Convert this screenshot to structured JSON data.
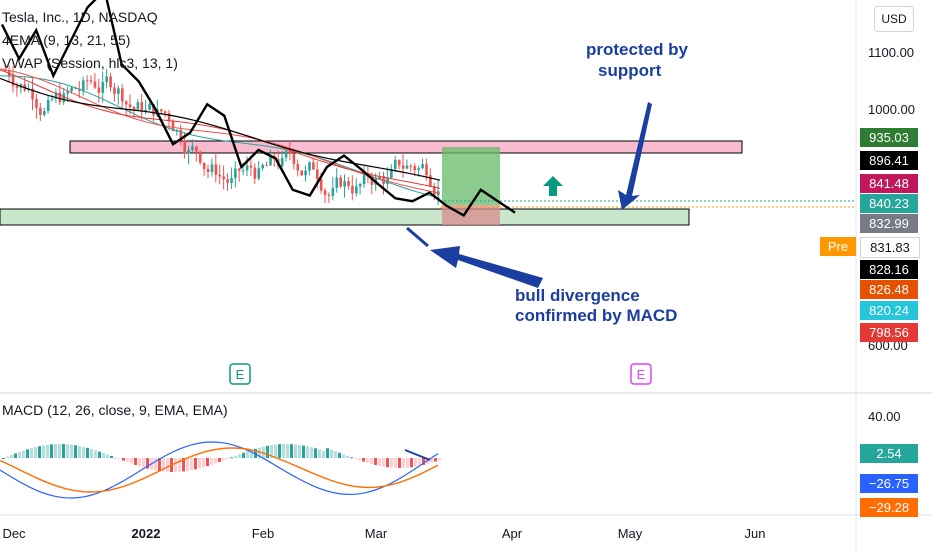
{
  "header": {
    "symbol_line": "Tesla, Inc., 1D, NASDAQ",
    "ema_line": "4EMA (9, 13, 21, 55)",
    "vwap_line": "VWAP (Session, hlc3, 13, 1)",
    "currency_button": "USD"
  },
  "annotations": {
    "support_line1": "protected by",
    "support_line2": "support",
    "divergence_line1": "bull divergence",
    "divergence_line2": "confirmed by MACD"
  },
  "earnings_markers": [
    {
      "label": "E",
      "color": "#089981"
    },
    {
      "label": "E",
      "color": "#e040fb"
    }
  ],
  "price_axis": {
    "ticks": [
      "1100.00",
      "1000.00",
      "600.00"
    ]
  },
  "price_tags": [
    {
      "value": "935.03",
      "bg": "#2e7d32"
    },
    {
      "value": "896.41",
      "bg": "#000000"
    },
    {
      "value": "841.48",
      "bg": "#c2185b"
    },
    {
      "value": "840.23",
      "bg": "#26a69a"
    },
    {
      "value": "832.99",
      "bg": "#787b86"
    },
    {
      "value": "831.83",
      "bg": "#ffffff",
      "fg": "#131722"
    },
    {
      "value": "828.16",
      "bg": "#000000"
    },
    {
      "value": "826.48",
      "bg": "#e65100"
    },
    {
      "value": "820.24",
      "bg": "#26c6da"
    },
    {
      "value": "798.56",
      "bg": "#e53935"
    }
  ],
  "pre_label": "Pre",
  "macd": {
    "legend": "MACD (12, 26, close, 9, EMA, EMA)",
    "axis_tick": "40.00",
    "tags": [
      {
        "value": "2.54",
        "bg": "#26a69a"
      },
      {
        "value": "−26.75",
        "bg": "#2962ff"
      },
      {
        "value": "−29.28",
        "bg": "#ff6d00"
      }
    ]
  },
  "chart_data": {
    "type": "line",
    "time_axis": [
      "Dec",
      "2022",
      "Feb",
      "Mar",
      "Apr",
      "May",
      "Jun"
    ],
    "y_scale": "price",
    "series": [
      {
        "values": [
          1150,
          1090,
          1140,
          1060,
          1120,
          1180,
          1210,
          1080,
          1050,
          1000,
          940,
          960,
          1010,
          990,
          900,
          930,
          915,
          860,
          850,
          900,
          920,
          896,
          870,
          845,
          840,
          855,
          832,
          815,
          860,
          840,
          820
        ]
      }
    ],
    "zones": [
      {
        "name": "resistance",
        "from": 910,
        "to": 935,
        "color": "#f8bbd0"
      },
      {
        "name": "support",
        "from": 820,
        "to": 842,
        "color": "#c8e6c9"
      }
    ]
  }
}
